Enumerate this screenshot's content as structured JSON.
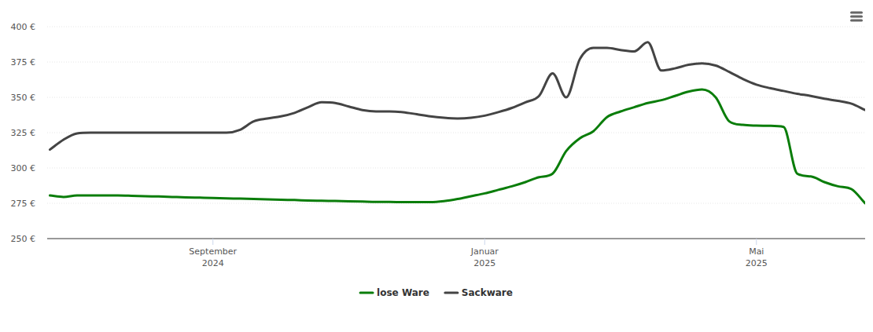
{
  "chart_data": {
    "type": "line",
    "categories": [
      null,
      null,
      null,
      null,
      null,
      null,
      null,
      null,
      null,
      null,
      null,
      null,
      "September 2024",
      null,
      null,
      null,
      null,
      null,
      null,
      null,
      null,
      null,
      null,
      null,
      null,
      null,
      null,
      null,
      null,
      null,
      null,
      null,
      "Januar 2025",
      null,
      null,
      null,
      null,
      null,
      null,
      null,
      null,
      null,
      null,
      null,
      null,
      null,
      null,
      null,
      null,
      null,
      null,
      null,
      "Mai 2025",
      null,
      null,
      null,
      null,
      null,
      null,
      null,
      null
    ],
    "series": [
      {
        "name": "lose Ware",
        "color": "#0a7d0a",
        "values": [
          280.5,
          279.5,
          280.5,
          280.5,
          280.5,
          280.5,
          280.3,
          280,
          279.8,
          279.5,
          279.2,
          279,
          278.8,
          278.5,
          278.3,
          278,
          277.8,
          277.5,
          277.3,
          277,
          276.8,
          276.6,
          276.4,
          276.2,
          276,
          276,
          275.8,
          275.8,
          275.8,
          276.5,
          278,
          280,
          282,
          284.5,
          287,
          290,
          293.5,
          296,
          312,
          321,
          326,
          336,
          340,
          343,
          346,
          348,
          351,
          354,
          355.5,
          350,
          333,
          330.5,
          330,
          329.8,
          329,
          296,
          294,
          290,
          287,
          285,
          275
        ]
      },
      {
        "name": "Sackware",
        "color": "#444444",
        "values": [
          313,
          320,
          324.5,
          325,
          325,
          325,
          325,
          325,
          325,
          325,
          325,
          325,
          325,
          325,
          327,
          333,
          335,
          336.5,
          339,
          343,
          346.5,
          346,
          343.5,
          341,
          340,
          340,
          339.5,
          338,
          336.5,
          335.5,
          335,
          335.5,
          337,
          339.5,
          342.5,
          346.5,
          351,
          367,
          350,
          377,
          385,
          385,
          383.5,
          382.5,
          389,
          369,
          370.5,
          373,
          374,
          372.5,
          368,
          363,
          359,
          356.5,
          354.5,
          352.5,
          351,
          349,
          347.5,
          345.5,
          341
        ]
      }
    ],
    "ylim": [
      250,
      400
    ],
    "yticks": [
      {
        "value": 250,
        "label": "250 €"
      },
      {
        "value": 275,
        "label": "275 €"
      },
      {
        "value": 300,
        "label": "300 €"
      },
      {
        "value": 325,
        "label": "325 €"
      },
      {
        "value": 350,
        "label": "350 €"
      },
      {
        "value": 375,
        "label": "375 €"
      },
      {
        "value": 400,
        "label": "400 €"
      }
    ],
    "grid": true,
    "legend": "bottom"
  }
}
